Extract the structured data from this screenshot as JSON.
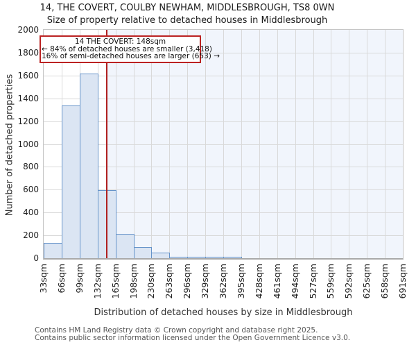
{
  "title": {
    "line1": "14, THE COVERT, COULBY NEWHAM, MIDDLESBROUGH, TS8 0WN",
    "line2": "Size of property relative to detached houses in Middlesbrough"
  },
  "annotation": {
    "line1": "14 THE COVERT: 148sqm",
    "line2": "← 84% of detached houses are smaller (3,418)",
    "line3": "16% of semi-detached houses are larger (653) →"
  },
  "footer": {
    "line1": "Contains HM Land Registry data © Crown copyright and database right 2025.",
    "line2": "Contains public sector information licensed under the Open Government Licence v3.0."
  },
  "chart_data": {
    "type": "bar",
    "title": "14, THE COVERT, COULBY NEWHAM, MIDDLESBROUGH, TS8 0WN — Size of property relative to detached houses in Middlesbrough",
    "xlabel": "Distribution of detached houses by size in Middlesbrough",
    "ylabel": "Number of detached properties",
    "x_tick_labels": [
      "33sqm",
      "66sqm",
      "99sqm",
      "132sqm",
      "165sqm",
      "198sqm",
      "230sqm",
      "263sqm",
      "296sqm",
      "329sqm",
      "362sqm",
      "395sqm",
      "428sqm",
      "461sqm",
      "494sqm",
      "527sqm",
      "559sqm",
      "592sqm",
      "625sqm",
      "658sqm",
      "691sqm"
    ],
    "bin_edges_sqm": [
      33,
      66,
      99,
      132,
      165,
      198,
      230,
      263,
      296,
      329,
      362,
      395,
      428,
      461,
      494,
      527,
      559,
      592,
      625,
      658,
      691
    ],
    "values": [
      133,
      1340,
      1620,
      595,
      210,
      100,
      48,
      15,
      10,
      10,
      10,
      0,
      0,
      0,
      0,
      0,
      0,
      0,
      0,
      0
    ],
    "ylim": [
      0,
      2000
    ],
    "ytick_step": 200,
    "x_range_sqm": [
      33,
      691
    ],
    "marker_value_sqm": 148,
    "grid": true,
    "legend": "none",
    "colors": {
      "bar_fill": "#dbe5f3",
      "bar_border": "#6593c9",
      "marker_line": "#b01f1f",
      "annotation_border": "#bb2222",
      "shade_right_of_marker": "#f1f5fc",
      "gridline": "#d9d9d9"
    }
  }
}
